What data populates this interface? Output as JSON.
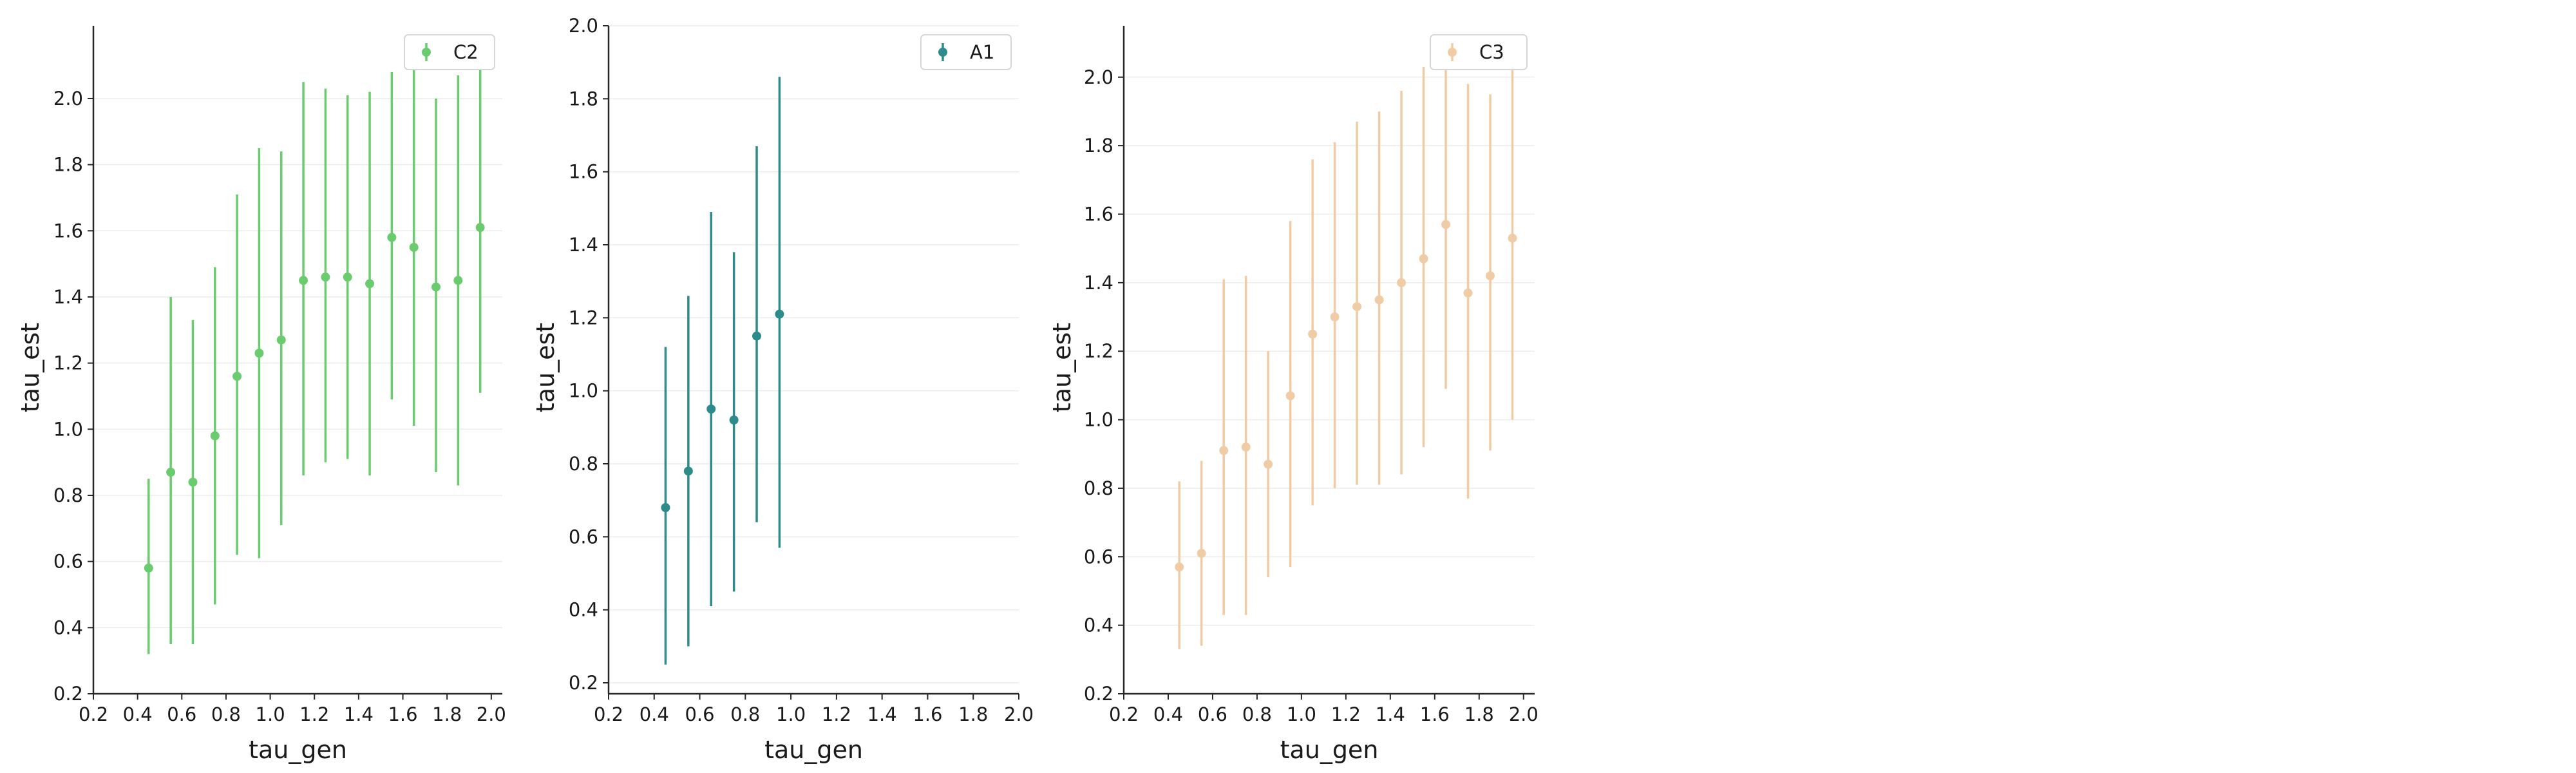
{
  "chart_data": [
    {
      "type": "errorbar",
      "xlabel": "tau_gen",
      "ylabel": "tau_est",
      "xlim": [
        0.2,
        2.05
      ],
      "ylim": [
        0.2,
        2.22
      ],
      "xticks": [
        "0.2",
        "0.4",
        "0.6",
        "0.8",
        "1.0",
        "1.2",
        "1.4",
        "1.6",
        "1.8",
        "2.0"
      ],
      "yticks": [
        "0.2",
        "0.4",
        "0.6",
        "0.8",
        "1.0",
        "1.2",
        "1.4",
        "1.6",
        "1.8",
        "2.0"
      ],
      "grid": "horizontal",
      "legend_position": "top-right",
      "color": "#6acc6e",
      "series": [
        {
          "name": "C2",
          "x": [
            0.45,
            0.55,
            0.65,
            0.75,
            0.85,
            0.95,
            1.05,
            1.15,
            1.25,
            1.35,
            1.45,
            1.55,
            1.65,
            1.75,
            1.85,
            1.95
          ],
          "y": [
            0.58,
            0.87,
            0.84,
            0.98,
            1.16,
            1.23,
            1.27,
            1.45,
            1.46,
            1.46,
            1.44,
            1.58,
            1.55,
            1.43,
            1.45,
            1.61
          ],
          "err_low": [
            0.32,
            0.35,
            0.35,
            0.47,
            0.62,
            0.61,
            0.71,
            0.86,
            0.9,
            0.91,
            0.86,
            1.09,
            1.01,
            0.87,
            0.83,
            1.11
          ],
          "err_high": [
            0.85,
            1.4,
            1.33,
            1.49,
            1.71,
            1.85,
            1.84,
            2.05,
            2.03,
            2.01,
            2.02,
            2.08,
            2.12,
            2.0,
            2.07,
            2.12
          ]
        }
      ]
    },
    {
      "type": "errorbar",
      "xlabel": "tau_gen",
      "ylabel": "tau_est",
      "xlim": [
        0.2,
        2.0
      ],
      "ylim": [
        0.17,
        2.0
      ],
      "xticks": [
        "0.2",
        "0.4",
        "0.6",
        "0.8",
        "1.0",
        "1.2",
        "1.4",
        "1.6",
        "1.8",
        "2.0"
      ],
      "yticks": [
        "0.2",
        "0.4",
        "0.6",
        "0.8",
        "1.0",
        "1.2",
        "1.4",
        "1.6",
        "1.8",
        "2.0"
      ],
      "grid": "horizontal",
      "legend_position": "top-right",
      "color": "#2e8b8b",
      "series": [
        {
          "name": "A1",
          "x": [
            0.45,
            0.55,
            0.65,
            0.75,
            0.85,
            0.95
          ],
          "y": [
            0.68,
            0.78,
            0.95,
            0.92,
            1.15,
            1.21
          ],
          "err_low": [
            0.25,
            0.3,
            0.41,
            0.45,
            0.64,
            0.57
          ],
          "err_high": [
            1.12,
            1.26,
            1.49,
            1.38,
            1.67,
            1.86
          ]
        }
      ]
    },
    {
      "type": "errorbar",
      "xlabel": "tau_gen",
      "ylabel": "tau_est",
      "xlim": [
        0.2,
        2.05
      ],
      "ylim": [
        0.2,
        2.15
      ],
      "xticks": [
        "0.2",
        "0.4",
        "0.6",
        "0.8",
        "1.0",
        "1.2",
        "1.4",
        "1.6",
        "1.8",
        "2.0"
      ],
      "yticks": [
        "0.2",
        "0.4",
        "0.6",
        "0.8",
        "1.0",
        "1.2",
        "1.4",
        "1.6",
        "1.8",
        "2.0"
      ],
      "grid": "horizontal",
      "legend_position": "top-right",
      "color": "#f0cca6",
      "series": [
        {
          "name": "C3",
          "x": [
            0.45,
            0.55,
            0.65,
            0.75,
            0.85,
            0.95,
            1.05,
            1.15,
            1.25,
            1.35,
            1.45,
            1.55,
            1.65,
            1.75,
            1.85,
            1.95
          ],
          "y": [
            0.57,
            0.61,
            0.91,
            0.92,
            0.87,
            1.07,
            1.25,
            1.3,
            1.33,
            1.35,
            1.4,
            1.47,
            1.57,
            1.37,
            1.42,
            1.53
          ],
          "err_low": [
            0.33,
            0.34,
            0.43,
            0.43,
            0.54,
            0.57,
            0.75,
            0.8,
            0.81,
            0.81,
            0.84,
            0.92,
            1.09,
            0.77,
            0.91,
            1.0
          ],
          "err_high": [
            0.82,
            0.88,
            1.41,
            1.42,
            1.2,
            1.58,
            1.76,
            1.81,
            1.87,
            1.9,
            1.96,
            2.03,
            2.08,
            1.98,
            1.95,
            2.07
          ]
        }
      ]
    }
  ]
}
